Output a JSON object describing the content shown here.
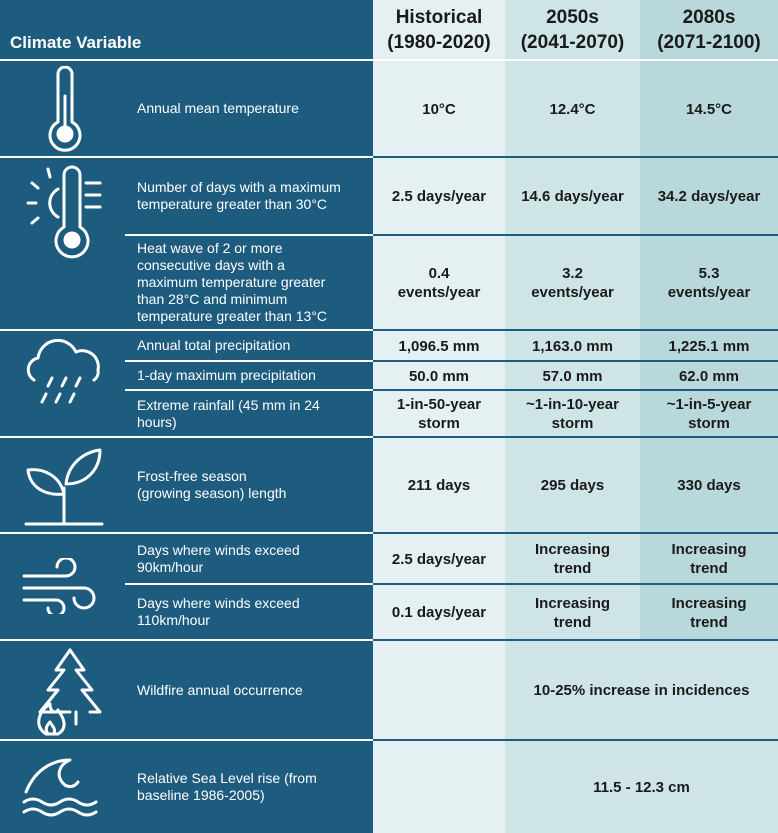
{
  "header": {
    "variable_label": "Climate Variable",
    "columns": [
      {
        "name": "Historical",
        "period": "(1980-2020)"
      },
      {
        "name": "2050s",
        "period": "(2041-2070)"
      },
      {
        "name": "2080s",
        "period": "(2071-2100)"
      }
    ]
  },
  "groups": [
    {
      "rows": [
        {
          "variable": "Annual mean temperature",
          "values": [
            "10°C",
            "12.4°C",
            "14.5°C"
          ]
        }
      ]
    },
    {
      "rows": [
        {
          "variable": "Number of days with a maximum\ntemperature greater than 30°C",
          "values": [
            "2.5 days/year",
            "14.6 days/year",
            "34.2 days/year"
          ]
        },
        {
          "variable": "Heat wave of 2 or more\nconsecutive days with a\nmaximum temperature greater\nthan 28°C and minimum\ntemperature greater than 13°C",
          "values": [
            "0.4\nevents/year",
            "3.2\nevents/year",
            "5.3\nevents/year"
          ]
        }
      ]
    },
    {
      "rows": [
        {
          "variable": "Annual total precipitation",
          "values": [
            "1,096.5 mm",
            "1,163.0 mm",
            "1,225.1 mm"
          ]
        },
        {
          "variable": "1-day maximum precipitation",
          "values": [
            "50.0 mm",
            "57.0 mm",
            "62.0 mm"
          ]
        },
        {
          "variable": "Extreme rainfall (45 mm in 24\nhours)",
          "values": [
            "1-in-50-year\nstorm",
            "~1-in-10-year\nstorm",
            "~1-in-5-year\nstorm"
          ]
        }
      ]
    },
    {
      "rows": [
        {
          "variable": "Frost-free season\n(growing season) length",
          "values": [
            "211 days",
            "295 days",
            "330 days"
          ]
        }
      ]
    },
    {
      "rows": [
        {
          "variable": "Days where winds exceed\n90km/hour",
          "values": [
            "2.5 days/year",
            "Increasing\ntrend",
            "Increasing\ntrend"
          ]
        },
        {
          "variable": "Days where winds exceed\n110km/hour",
          "values": [
            "0.1 days/year",
            "Increasing\ntrend",
            "Increasing\ntrend"
          ]
        }
      ]
    },
    {
      "rows": [
        {
          "variable": "Wildfire annual occurrence",
          "merged_value": "10-25% increase in incidences"
        }
      ]
    },
    {
      "rows": [
        {
          "variable": "Relative Sea Level rise (from\nbaseline 1986-2005)",
          "merged_value": "11.5 - 12.3 cm"
        }
      ]
    }
  ]
}
